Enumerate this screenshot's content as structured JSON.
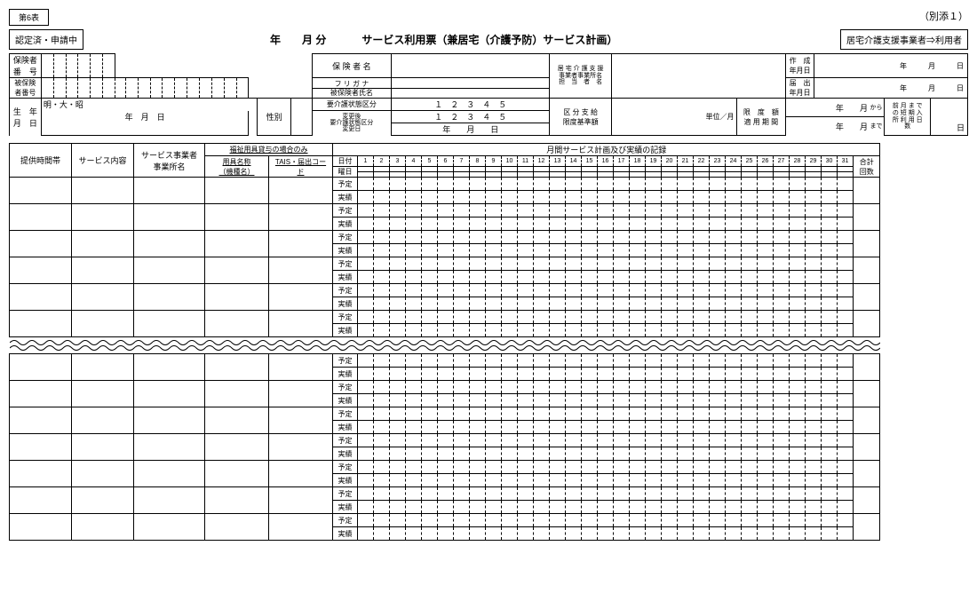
{
  "form": {
    "table_no": "第6表",
    "attachment": "（別添１）",
    "certified_applying": "認定済・申請中",
    "year_month_part": "年　　月 分",
    "title": "サービス利用票（兼居宅（介護予防）サービス計画）",
    "provider_to_user": "居宅介護支援事業者⇒利用者"
  },
  "header": {
    "insurer_no": "保険者\n番　号",
    "insurer_name": "保 険 者 名",
    "insured_no": "被保険\n者番号",
    "furigana": "フ リ ガ ナ",
    "insured_name": "被保険者氏名",
    "birth_label": "生　年\n月　日",
    "era": "明・大・昭",
    "ymd": "年　月　日",
    "sex": "性別",
    "care_level": "要介護状態区分",
    "after_change": "変更後\n要介護状態区分\n変更日",
    "levels": "１　２　３　４　５",
    "levels2": "１　２　３　４　５",
    "ymd2": "年　　月　　日",
    "kubun_shikyu": "区 分 支 給\n限度基準額",
    "unit_month": "単位／月",
    "support_office": "居 宅 介 護 支 援\n事業者事業所名\n担　当　者　名",
    "created": "作　成\n年月日",
    "submitted": "届　出\n年月日",
    "limit_period": "限　度　額\n適 用 期 間",
    "ym_suffix": "年　　　月　　　日",
    "from": "から",
    "to": "まで",
    "year": "年",
    "month": "月",
    "short_stay": "前 月 ま で\nの 短 期 入\n所 利 用 日\n数",
    "day": "日"
  },
  "grid": {
    "time_band": "提供時間帯",
    "service_content": "サービス内容",
    "service_office": "サービス事業者\n事業所名",
    "rental_only": "福祉用具貸与の場合のみ",
    "tool_name": "用具名称\n（機種名）",
    "tais_code": "TAIS・届出コー\nド",
    "monthly_record": "月間サービス計画及び実績の記録",
    "date": "日付",
    "weekday": "曜日",
    "plan": "予定",
    "actual": "実績",
    "total": "合計\n回数",
    "days": [
      "1",
      "2",
      "3",
      "4",
      "5",
      "6",
      "7",
      "8",
      "9",
      "10",
      "11",
      "12",
      "13",
      "14",
      "15",
      "16",
      "17",
      "18",
      "19",
      "20",
      "21",
      "22",
      "23",
      "24",
      "25",
      "26",
      "27",
      "28",
      "29",
      "30",
      "31"
    ]
  }
}
